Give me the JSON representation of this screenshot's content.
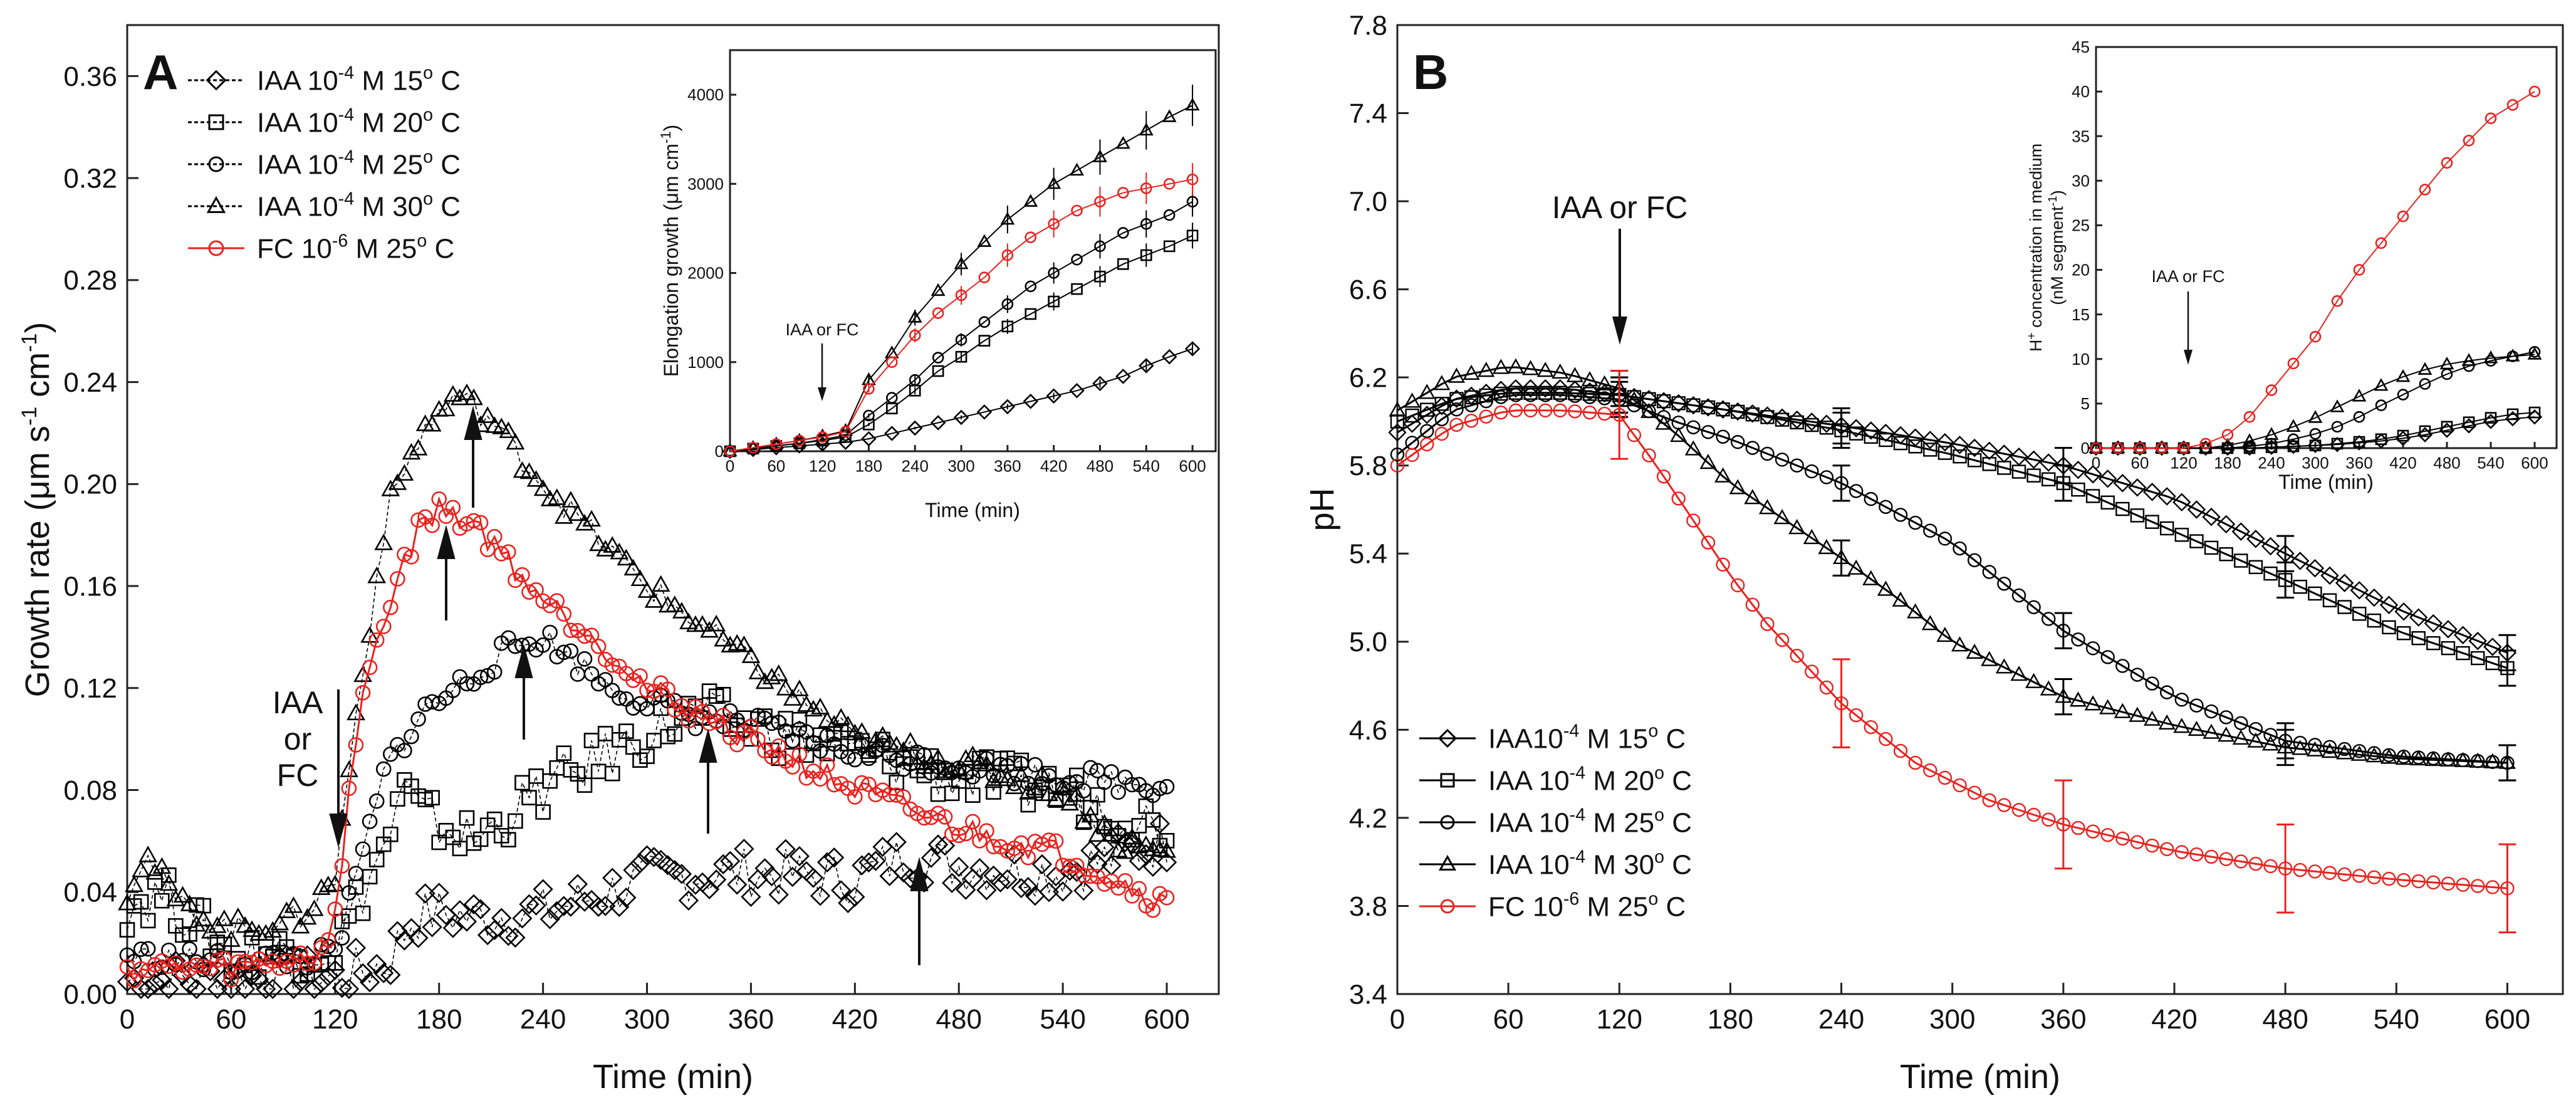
{
  "chart_data": [
    {
      "panel": "A",
      "type": "scatter",
      "xlabel": "Time (min)",
      "ylabel_main": "Growth rate (",
      "ylabel_unit": "μm s",
      "ylabel_sup1": "-1",
      "ylabel_mid": " cm",
      "ylabel_sup2": "-1",
      "ylabel_end": ")",
      "xlim": [
        0,
        630
      ],
      "ylim": [
        0,
        0.38
      ],
      "xticks": [
        "0",
        "60",
        "120",
        "180",
        "240",
        "300",
        "360",
        "420",
        "480",
        "540",
        "600"
      ],
      "yticks": [
        "0.00",
        "0.04",
        "0.08",
        "0.12",
        "0.16",
        "0.20",
        "0.24",
        "0.28",
        "0.32",
        "0.36"
      ],
      "annotation": [
        "IAA",
        "or",
        "FC"
      ],
      "series": [
        {
          "name": "IAA 10-4 M 15o C",
          "label": "IAA 10",
          "sup": "-4",
          "mid": " M 15",
          "sup2": "o",
          "end": " C",
          "marker": "diamond",
          "color": "#000000",
          "x": [
            0,
            60,
            120,
            150,
            165,
            180,
            200,
            240,
            300,
            360,
            420,
            450,
            480,
            540,
            600
          ],
          "y": [
            0.005,
            0.006,
            0.006,
            0.012,
            0.03,
            0.032,
            0.03,
            0.032,
            0.045,
            0.048,
            0.045,
            0.055,
            0.05,
            0.048,
            0.06
          ]
        },
        {
          "name": "IAA 10-4 M 20o C",
          "label": "IAA 10",
          "sup": "-4",
          "mid": " M 20",
          "sup2": "o",
          "end": " C",
          "marker": "square",
          "color": "#000000",
          "x": [
            0,
            20,
            60,
            120,
            150,
            160,
            170,
            200,
            240,
            280,
            310,
            330,
            360,
            420,
            480,
            540,
            600
          ],
          "y": [
            0.035,
            0.04,
            0.015,
            0.018,
            0.06,
            0.08,
            0.07,
            0.06,
            0.08,
            0.095,
            0.105,
            0.11,
            0.105,
            0.095,
            0.085,
            0.08,
            0.065
          ]
        },
        {
          "name": "IAA 10-4 M 25o C",
          "label": "IAA 10",
          "sup": "-4",
          "mid": " M 25",
          "sup2": "o",
          "end": " C",
          "marker": "circle",
          "color": "#000000",
          "x": [
            0,
            60,
            120,
            150,
            170,
            200,
            220,
            240,
            280,
            320,
            360,
            420,
            480,
            540,
            600
          ],
          "y": [
            0.015,
            0.012,
            0.015,
            0.09,
            0.11,
            0.125,
            0.135,
            0.14,
            0.12,
            0.11,
            0.105,
            0.095,
            0.09,
            0.085,
            0.082
          ]
        },
        {
          "name": "IAA 10-4 M 30o C",
          "label": "IAA 10",
          "sup": "-4",
          "mid": " M 30",
          "sup2": "o",
          "end": " C",
          "marker": "triangle",
          "color": "#000000",
          "x": [
            0,
            10,
            30,
            60,
            100,
            120,
            130,
            150,
            170,
            190,
            210,
            240,
            270,
            300,
            360,
            420,
            480,
            540,
            570,
            600
          ],
          "y": [
            0.04,
            0.055,
            0.035,
            0.025,
            0.03,
            0.045,
            0.1,
            0.19,
            0.22,
            0.235,
            0.225,
            0.2,
            0.18,
            0.16,
            0.13,
            0.1,
            0.09,
            0.08,
            0.06,
            0.055
          ]
        },
        {
          "name": "FC 10-6 M 25o C",
          "label": "FC 10",
          "sup": "-6",
          "mid": " M 25",
          "sup2": "o",
          "end": " C",
          "marker": "circle",
          "color": "#e8231f",
          "x": [
            0,
            60,
            110,
            120,
            130,
            140,
            150,
            160,
            170,
            180,
            200,
            220,
            240,
            270,
            300,
            330,
            360,
            420,
            480,
            540,
            570,
            600
          ],
          "y": [
            0.01,
            0.01,
            0.015,
            0.03,
            0.09,
            0.13,
            0.15,
            0.17,
            0.185,
            0.19,
            0.185,
            0.17,
            0.155,
            0.14,
            0.12,
            0.11,
            0.1,
            0.08,
            0.065,
            0.055,
            0.045,
            0.035
          ]
        }
      ],
      "inset": {
        "xlabel": "Time (min)",
        "ylabel_main": "Elongation growth (",
        "ylabel_unit": "μm cm",
        "ylabel_sup": "-1",
        "ylabel_end": ")",
        "annotation": "IAA or FC",
        "xlim": [
          0,
          630
        ],
        "ylim": [
          0,
          4500
        ],
        "xticks": [
          "0",
          "60",
          "120",
          "180",
          "240",
          "300",
          "360",
          "420",
          "480",
          "540",
          "600"
        ],
        "yticks": [
          "0",
          "1000",
          "2000",
          "3000",
          "4000"
        ],
        "x": [
          0,
          30,
          60,
          90,
          120,
          150,
          180,
          210,
          240,
          270,
          300,
          330,
          360,
          390,
          420,
          450,
          480,
          510,
          540,
          570,
          600
        ],
        "series": [
          {
            "name": "15C",
            "marker": "diamond",
            "color": "#000000",
            "y": [
              0,
              20,
              40,
              60,
              80,
              100,
              140,
              200,
              260,
              320,
              380,
              440,
              500,
              560,
              620,
              680,
              760,
              840,
              960,
              1060,
              1150
            ]
          },
          {
            "name": "20C",
            "marker": "square",
            "color": "#000000",
            "y": [
              0,
              30,
              60,
              90,
              120,
              160,
              300,
              480,
              680,
              900,
              1060,
              1240,
              1400,
              1540,
              1680,
              1820,
              1960,
              2100,
              2200,
              2300,
              2420
            ]
          },
          {
            "name": "25C",
            "marker": "circle",
            "color": "#000000",
            "y": [
              0,
              30,
              60,
              90,
              130,
              180,
              400,
              600,
              800,
              1050,
              1250,
              1450,
              1650,
              1850,
              2000,
              2150,
              2300,
              2450,
              2550,
              2650,
              2800
            ]
          },
          {
            "name": "30C",
            "marker": "triangle",
            "color": "#000000",
            "y": [
              0,
              40,
              80,
              120,
              170,
              230,
              800,
              1100,
              1500,
              1800,
              2100,
              2350,
              2600,
              2800,
              3000,
              3150,
              3300,
              3450,
              3600,
              3750,
              3880
            ]
          },
          {
            "name": "FC",
            "marker": "circle",
            "color": "#e8231f",
            "y": [
              0,
              40,
              80,
              120,
              160,
              220,
              700,
              1000,
              1300,
              1550,
              1750,
              1950,
              2200,
              2400,
              2550,
              2700,
              2800,
              2900,
              2950,
              3000,
              3050
            ]
          }
        ]
      }
    },
    {
      "panel": "B",
      "type": "line",
      "xlabel": "Time (min)",
      "ylabel": "pH",
      "xlim": [
        0,
        630
      ],
      "ylim": [
        3.4,
        7.8
      ],
      "xticks": [
        "0",
        "60",
        "120",
        "180",
        "240",
        "300",
        "360",
        "420",
        "480",
        "540",
        "600"
      ],
      "yticks": [
        "3.4",
        "3.8",
        "4.2",
        "4.6",
        "5.0",
        "5.4",
        "5.8",
        "6.2",
        "6.6",
        "7.0",
        "7.4",
        "7.8"
      ],
      "annotation": "IAA or FC",
      "series": [
        {
          "name": "IAA10-4 M 15o C",
          "label": "IAA10",
          "sup": "-4",
          "mid": " M 15",
          "sup2": "o",
          "end": " C",
          "marker": "diamond",
          "color": "#000000",
          "x": [
            0,
            30,
            60,
            90,
            120,
            180,
            240,
            300,
            360,
            420,
            480,
            540,
            600
          ],
          "y": [
            5.95,
            6.1,
            6.15,
            6.15,
            6.12,
            6.05,
            5.98,
            5.9,
            5.8,
            5.65,
            5.4,
            5.15,
            4.95
          ]
        },
        {
          "name": "IAA 10-4 M 20o C",
          "label": "IAA 10",
          "sup": "-4",
          "mid": " M 20",
          "sup2": "o",
          "end": " C",
          "marker": "square",
          "color": "#000000",
          "x": [
            0,
            30,
            60,
            90,
            120,
            180,
            240,
            300,
            360,
            420,
            480,
            540,
            600
          ],
          "y": [
            6.0,
            6.1,
            6.13,
            6.13,
            6.12,
            6.05,
            5.96,
            5.85,
            5.72,
            5.5,
            5.28,
            5.05,
            4.88
          ]
        },
        {
          "name": "IAA 10-4 M 25o C",
          "label": "IAA 10",
          "sup": "-4",
          "mid": " M 25",
          "sup2": "o",
          "end": " C",
          "marker": "circle",
          "color": "#000000",
          "x": [
            0,
            30,
            60,
            90,
            120,
            150,
            180,
            240,
            300,
            360,
            420,
            480,
            540,
            600
          ],
          "y": [
            5.85,
            6.05,
            6.12,
            6.12,
            6.1,
            6.0,
            5.92,
            5.72,
            5.45,
            5.05,
            4.75,
            4.55,
            4.48,
            4.45
          ]
        },
        {
          "name": "IAA 10-4 M 30o C",
          "label": "IAA 10",
          "sup": "-4",
          "mid": " M 30",
          "sup2": "o",
          "end": " C",
          "marker": "triangle",
          "color": "#000000",
          "x": [
            0,
            30,
            60,
            90,
            120,
            150,
            180,
            210,
            240,
            270,
            300,
            360,
            420,
            480,
            540,
            600
          ],
          "y": [
            6.05,
            6.2,
            6.25,
            6.22,
            6.15,
            5.95,
            5.72,
            5.55,
            5.38,
            5.2,
            5.0,
            4.75,
            4.62,
            4.52,
            4.47,
            4.45
          ]
        },
        {
          "name": "FC 10-6 M 25o C",
          "label": "FC 10",
          "sup": "-6",
          "mid": " M 25",
          "sup2": "o",
          "end": " C",
          "marker": "circle",
          "color": "#e8231f",
          "x": [
            0,
            30,
            60,
            90,
            120,
            140,
            160,
            180,
            200,
            240,
            280,
            320,
            360,
            420,
            480,
            540,
            600
          ],
          "y": [
            5.8,
            5.98,
            6.05,
            6.05,
            6.03,
            5.8,
            5.55,
            5.3,
            5.08,
            4.72,
            4.45,
            4.28,
            4.17,
            4.05,
            3.97,
            3.92,
            3.88
          ]
        }
      ],
      "inset": {
        "xlabel": "Time (min)",
        "ylabel_line1_pre": "H",
        "ylabel_line1_sup": "+",
        "ylabel_line1": " concentration in medium",
        "ylabel_line2_pre": "(nM segment",
        "ylabel_line2_sup": "-1",
        "ylabel_line2_end": ")",
        "annotation": "IAA or FC",
        "xlim": [
          0,
          630
        ],
        "ylim": [
          0,
          45
        ],
        "xticks": [
          "0",
          "60",
          "120",
          "180",
          "240",
          "300",
          "360",
          "420",
          "480",
          "540",
          "600"
        ],
        "yticks": [
          "0",
          "5",
          "10",
          "15",
          "20",
          "25",
          "30",
          "35",
          "40",
          "45"
        ],
        "x": [
          0,
          30,
          60,
          90,
          120,
          150,
          180,
          210,
          240,
          270,
          300,
          330,
          360,
          390,
          420,
          450,
          480,
          510,
          540,
          570,
          600
        ],
        "series": [
          {
            "name": "15C",
            "marker": "diamond",
            "color": "#000000",
            "y": [
              0,
              0,
              0,
              0,
              0,
              0,
              0,
              0,
              0.1,
              0.2,
              0.3,
              0.4,
              0.6,
              0.8,
              1.1,
              1.5,
              2.0,
              2.5,
              3.0,
              3.3,
              3.5
            ]
          },
          {
            "name": "20C",
            "marker": "square",
            "color": "#000000",
            "y": [
              0,
              0,
              0,
              0,
              0,
              0,
              0,
              0,
              0.1,
              0.2,
              0.3,
              0.5,
              0.7,
              1.0,
              1.4,
              1.9,
              2.4,
              2.9,
              3.4,
              3.8,
              4.0
            ]
          },
          {
            "name": "25C",
            "marker": "circle",
            "color": "#000000",
            "y": [
              0,
              0,
              0,
              0,
              0,
              0,
              0,
              0.2,
              0.5,
              1.0,
              1.6,
              2.4,
              3.5,
              4.8,
              6.0,
              7.2,
              8.3,
              9.2,
              9.8,
              10.3,
              10.8
            ]
          },
          {
            "name": "30C",
            "marker": "triangle",
            "color": "#000000",
            "y": [
              0,
              0,
              0,
              0,
              0,
              0,
              0.3,
              0.8,
              1.5,
              2.4,
              3.4,
              4.6,
              5.8,
              7.0,
              8.0,
              8.8,
              9.4,
              9.8,
              10.1,
              10.3,
              10.5
            ]
          },
          {
            "name": "FC",
            "marker": "circle",
            "color": "#e8231f",
            "y": [
              0,
              0,
              0,
              0,
              0,
              0.5,
              1.5,
              3.5,
              6.5,
              9.5,
              12.5,
              16.5,
              20.0,
              23.0,
              26.0,
              29.0,
              32.0,
              34.5,
              37.0,
              38.5,
              40.0
            ]
          }
        ]
      }
    }
  ]
}
